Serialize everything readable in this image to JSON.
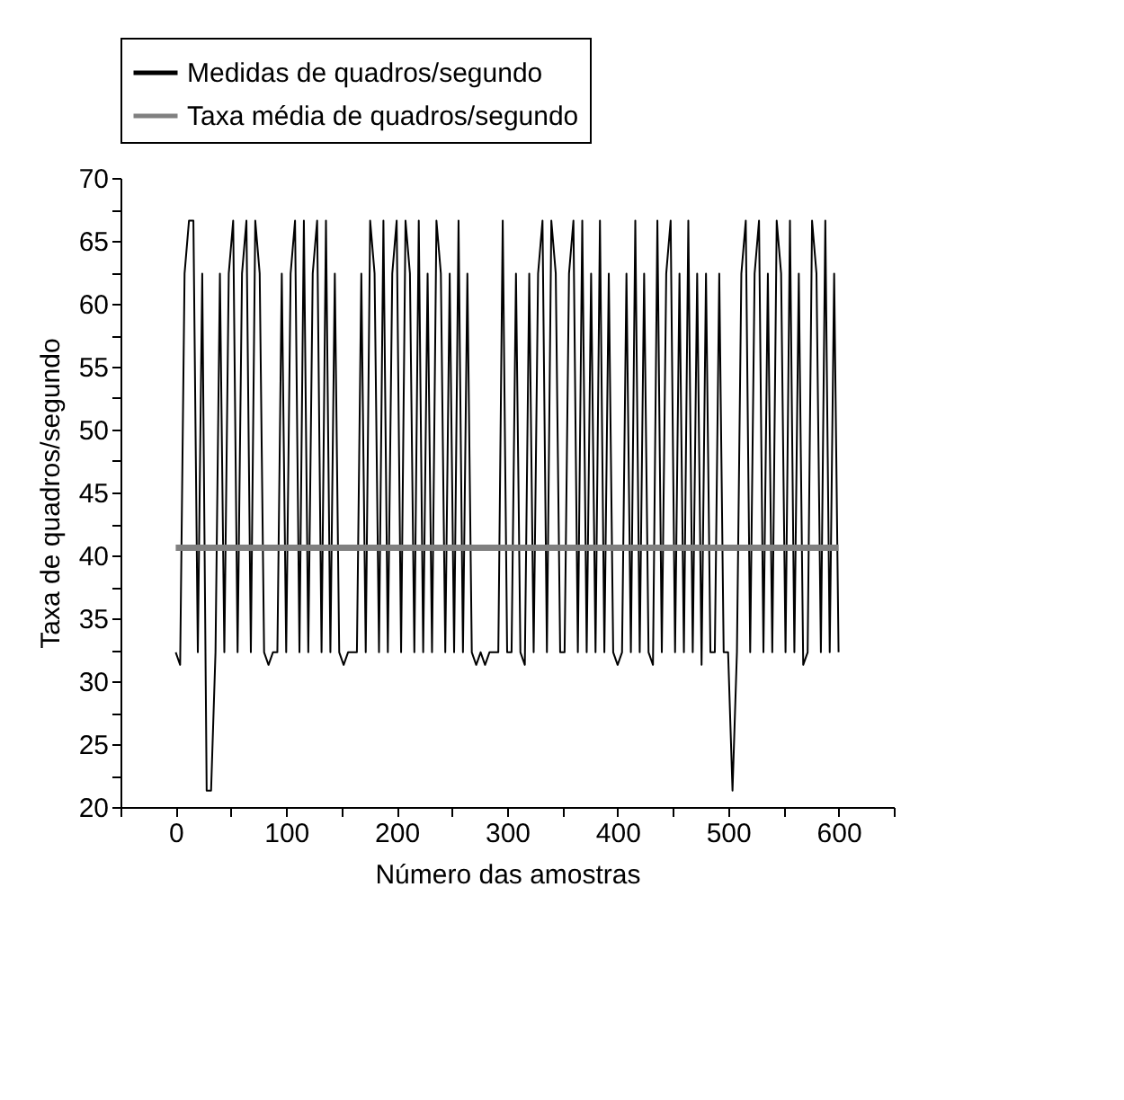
{
  "chart_data": {
    "type": "line",
    "xlabel": "Número das amostras",
    "ylabel": "Taxa de quadros/segundo",
    "xlim": [
      -50,
      650
    ],
    "xticks": [
      {
        "value": -50,
        "label": null
      },
      0,
      {
        "value": 50,
        "label": null
      },
      100,
      {
        "value": 150,
        "label": null
      },
      200,
      {
        "value": 250,
        "label": null
      },
      300,
      {
        "value": 350,
        "label": null
      },
      400,
      {
        "value": 450,
        "label": null
      },
      500,
      {
        "value": 550,
        "label": null
      },
      600,
      {
        "value": 650,
        "label": null
      }
    ],
    "ylim": [
      20,
      70
    ],
    "yticks": [
      20,
      {
        "value": 22.5,
        "label": null
      },
      25,
      {
        "value": 27.5,
        "label": null
      },
      30,
      {
        "value": 32.5,
        "label": null
      },
      35,
      {
        "value": 37.5,
        "label": null
      },
      40,
      {
        "value": 42.5,
        "label": null
      },
      45,
      {
        "value": 47.5,
        "label": null
      },
      50,
      {
        "value": 52.5,
        "label": null
      },
      55,
      {
        "value": 57.5,
        "label": null
      },
      60,
      {
        "value": 62.5,
        "label": null
      },
      65,
      {
        "value": 67.5,
        "label": null
      },
      70
    ],
    "grid": false,
    "legend": "top",
    "series": [
      {
        "name": "Medidas de quadros/segundo",
        "color": "#000000",
        "x": [
          0,
          4,
          8,
          12,
          16,
          20,
          24,
          28,
          32,
          36,
          40,
          44,
          48,
          52,
          56,
          60,
          64,
          68,
          72,
          76,
          80,
          84,
          88,
          92,
          96,
          100,
          104,
          108,
          112,
          116,
          120,
          124,
          128,
          132,
          136,
          140,
          144,
          148,
          152,
          156,
          160,
          164,
          168,
          172,
          176,
          180,
          184,
          188,
          192,
          196,
          200,
          204,
          208,
          212,
          216,
          220,
          224,
          228,
          232,
          236,
          240,
          244,
          248,
          252,
          256,
          260,
          264,
          268,
          272,
          276,
          280,
          284,
          288,
          292,
          296,
          300,
          304,
          308,
          312,
          316,
          320,
          324,
          328,
          332,
          336,
          340,
          344,
          348,
          352,
          356,
          360,
          364,
          368,
          372,
          376,
          380,
          384,
          388,
          392,
          396,
          400,
          404,
          408,
          412,
          416,
          420,
          424,
          428,
          432,
          436,
          440,
          444,
          448,
          452,
          456,
          460,
          464,
          468,
          472,
          476,
          480,
          484,
          488,
          492,
          496,
          500,
          504,
          508,
          512,
          516,
          520,
          524,
          528,
          532,
          536,
          540,
          544,
          548,
          552,
          556,
          560,
          564,
          568,
          572,
          576,
          580,
          584,
          588,
          592,
          596,
          600
        ],
        "values": [
          32.3,
          31.3,
          62.4,
          66.6,
          66.6,
          32.3,
          62.4,
          21.3,
          21.3,
          32.3,
          62.4,
          32.3,
          62.4,
          66.6,
          32.3,
          62.4,
          66.6,
          32.3,
          66.6,
          62.4,
          32.3,
          31.3,
          32.3,
          32.3,
          62.4,
          32.3,
          62.4,
          66.6,
          32.3,
          66.6,
          32.3,
          62.4,
          66.6,
          32.3,
          66.6,
          32.3,
          62.4,
          32.3,
          31.3,
          32.3,
          32.3,
          32.3,
          62.4,
          32.3,
          66.6,
          62.4,
          32.3,
          66.6,
          32.3,
          62.4,
          66.6,
          32.3,
          66.6,
          62.4,
          32.3,
          66.6,
          32.3,
          62.4,
          32.3,
          66.6,
          62.4,
          32.3,
          62.4,
          32.3,
          66.6,
          32.3,
          62.4,
          32.3,
          31.3,
          32.3,
          31.3,
          32.3,
          32.3,
          32.3,
          66.6,
          32.3,
          32.3,
          62.4,
          32.3,
          31.3,
          62.4,
          32.3,
          62.4,
          66.6,
          32.3,
          66.6,
          62.4,
          32.3,
          32.3,
          62.4,
          66.6,
          32.3,
          66.6,
          32.3,
          62.4,
          32.3,
          66.6,
          32.3,
          62.4,
          32.3,
          31.3,
          32.3,
          62.4,
          32.3,
          66.6,
          32.3,
          62.4,
          32.3,
          31.3,
          66.6,
          32.3,
          62.4,
          66.6,
          32.3,
          62.4,
          32.3,
          66.6,
          32.3,
          62.4,
          31.3,
          62.4,
          32.3,
          32.3,
          62.4,
          32.3,
          32.3,
          21.3,
          32.3,
          62.4,
          66.6,
          32.3,
          62.4,
          66.6,
          32.3,
          62.4,
          32.3,
          66.6,
          62.4,
          32.3,
          66.6,
          32.3,
          62.4,
          31.3,
          32.3,
          66.6,
          62.4,
          32.3,
          66.6,
          32.3,
          62.4,
          32.3
        ]
      },
      {
        "name": "Taxa média de quadros/segundo",
        "color": "#808080",
        "x": [
          0,
          600
        ],
        "values": [
          40.6,
          40.6
        ]
      }
    ]
  }
}
